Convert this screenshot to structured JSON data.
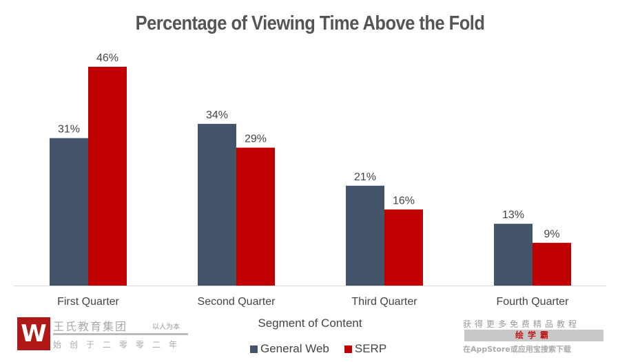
{
  "chart_data": {
    "type": "bar",
    "title": "Percentage of Viewing Time Above the Fold",
    "xlabel": "Segment of Content",
    "ylabel": "",
    "ylim": [
      0,
      46
    ],
    "grid": false,
    "legend_position": "bottom",
    "categories": [
      "First Quarter",
      "Second Quarter",
      "Third Quarter",
      "Fourth Quarter"
    ],
    "series": [
      {
        "name": "General Web",
        "color": "#44546a",
        "values": [
          31,
          34,
          21,
          13
        ],
        "labels": [
          "31%",
          "34%",
          "21%",
          "13%"
        ]
      },
      {
        "name": "SERP",
        "color": "#c00000",
        "values": [
          46,
          29,
          16,
          9
        ],
        "labels": [
          "46%",
          "29%",
          "16%",
          "9%"
        ]
      }
    ]
  },
  "watermark_left": {
    "logo_letter": "W",
    "name": "王氏教育集团",
    "slogan": "以人为本",
    "founded": "始创于二零零二年"
  },
  "watermark_right": {
    "line1": "获得更多免费精品教程",
    "app_name": "绘学霸",
    "line3": "在AppStore或应用宝搜索下载"
  }
}
